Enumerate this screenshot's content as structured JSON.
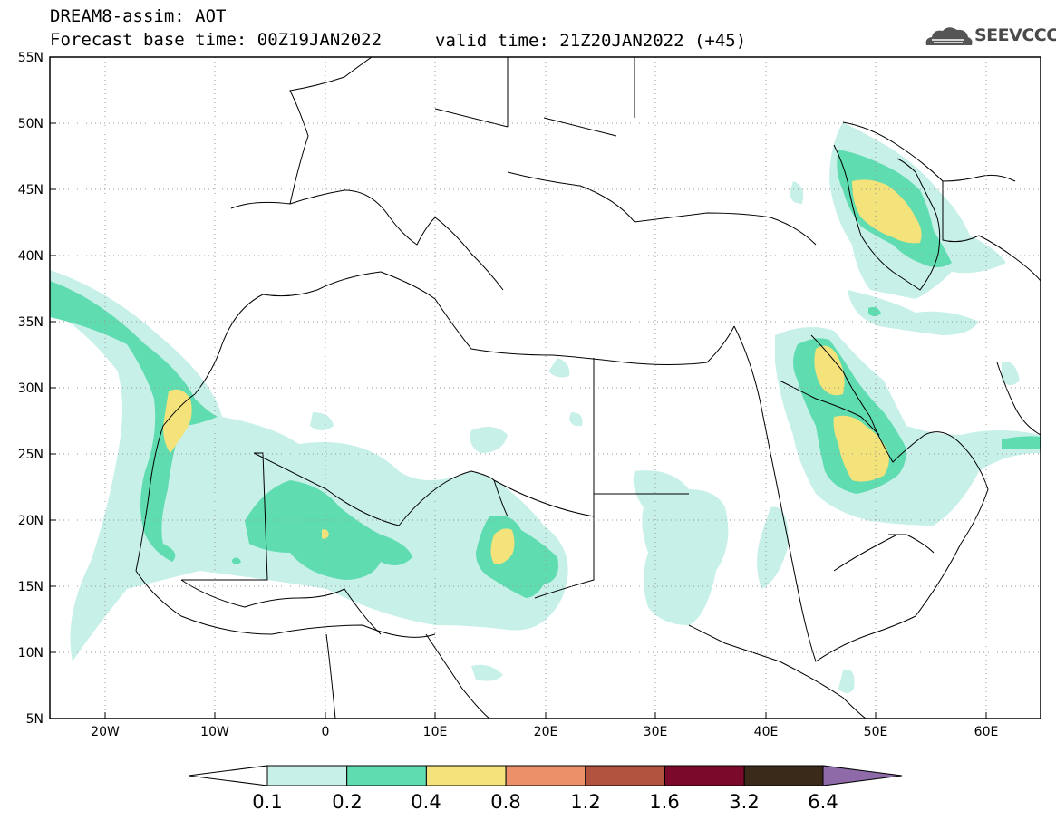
{
  "header": {
    "model_line": "DREAM8-assim: AOT",
    "base_time_line": "Forecast base time: 00Z19JAN2022",
    "valid_time_line": "valid time: 21Z20JAN2022 (+45)"
  },
  "logo": {
    "text": "SEEVCCC",
    "icon": "cloud-logo-icon"
  },
  "map": {
    "lat_labels": [
      "55N",
      "50N",
      "45N",
      "40N",
      "35N",
      "30N",
      "25N",
      "20N",
      "15N",
      "10N",
      "5N"
    ],
    "lon_labels": [
      "20W",
      "10W",
      "0",
      "10E",
      "20E",
      "30E",
      "40E",
      "50E",
      "60E"
    ],
    "lat_range": [
      5,
      55
    ],
    "lon_range": [
      -25,
      65
    ],
    "grid": "dotted"
  },
  "colorbar": {
    "labels": [
      "0.1",
      "0.2",
      "0.4",
      "0.8",
      "1.2",
      "1.6",
      "3.2",
      "6.4"
    ],
    "colors": [
      "#c6f0e8",
      "#5fdcb0",
      "#f4e27a",
      "#eb9068",
      "#b2533f",
      "#7b0a2a",
      "#3a2a1a",
      "#8e6aa8"
    ],
    "under_color": "#ffffff"
  },
  "colors": {
    "level1": "#c6f0e8",
    "level2": "#5fdcb0",
    "level3": "#f4e27a"
  }
}
